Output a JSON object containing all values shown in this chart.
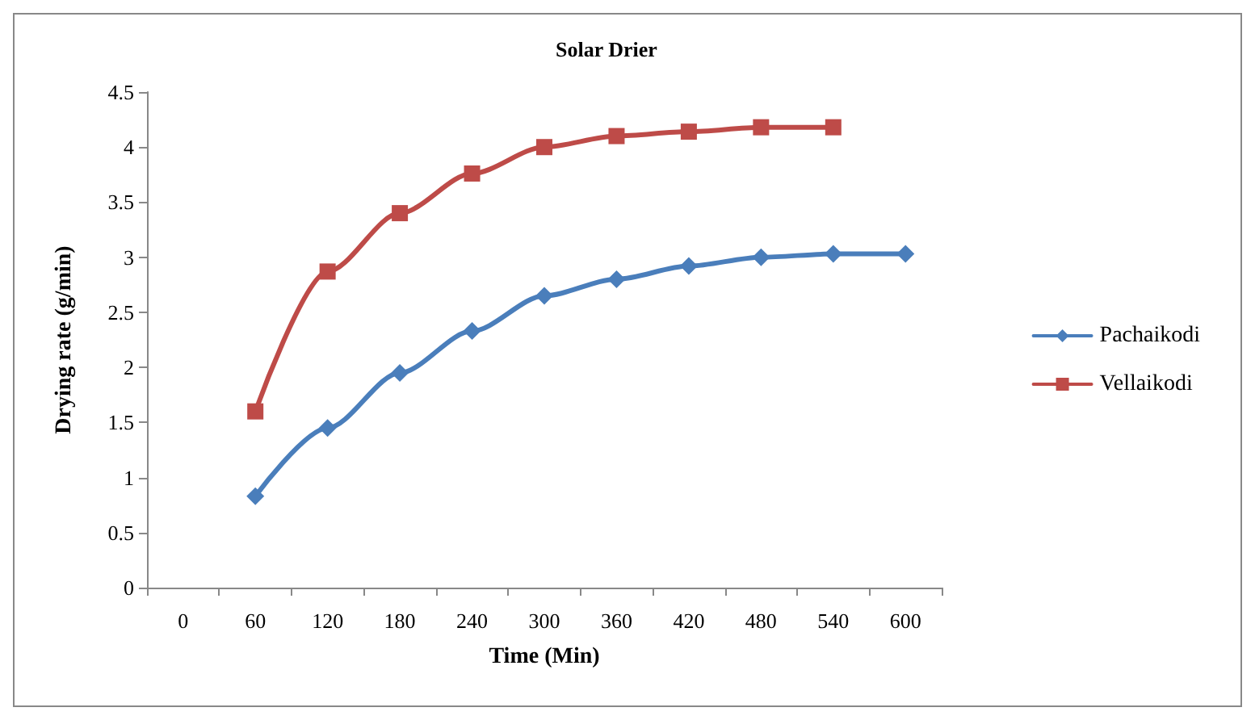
{
  "chart_data": {
    "type": "line",
    "title": "Solar Drier",
    "xlabel": "Time (Min)",
    "ylabel": "Drying rate (g/min)",
    "categories": [
      "0",
      "60",
      "120",
      "180",
      "240",
      "300",
      "360",
      "420",
      "480",
      "540",
      "600"
    ],
    "series": [
      {
        "name": "Pachaikodi",
        "color": "#4a7ebb",
        "marker": "diamond",
        "values": [
          null,
          0.83,
          1.45,
          1.95,
          2.33,
          2.65,
          2.8,
          2.92,
          3.0,
          3.03,
          3.03
        ]
      },
      {
        "name": "Vellaikodi",
        "color": "#be4b48",
        "marker": "square",
        "values": [
          null,
          1.6,
          2.87,
          3.4,
          3.76,
          4.0,
          4.1,
          4.14,
          4.18,
          4.18,
          null
        ]
      }
    ],
    "ylim": [
      0,
      4.5
    ],
    "yticks": [
      0,
      0.5,
      1,
      1.5,
      2,
      2.5,
      3,
      3.5,
      4,
      4.5
    ],
    "grid": false,
    "legend": "right",
    "line_style": "solid"
  }
}
